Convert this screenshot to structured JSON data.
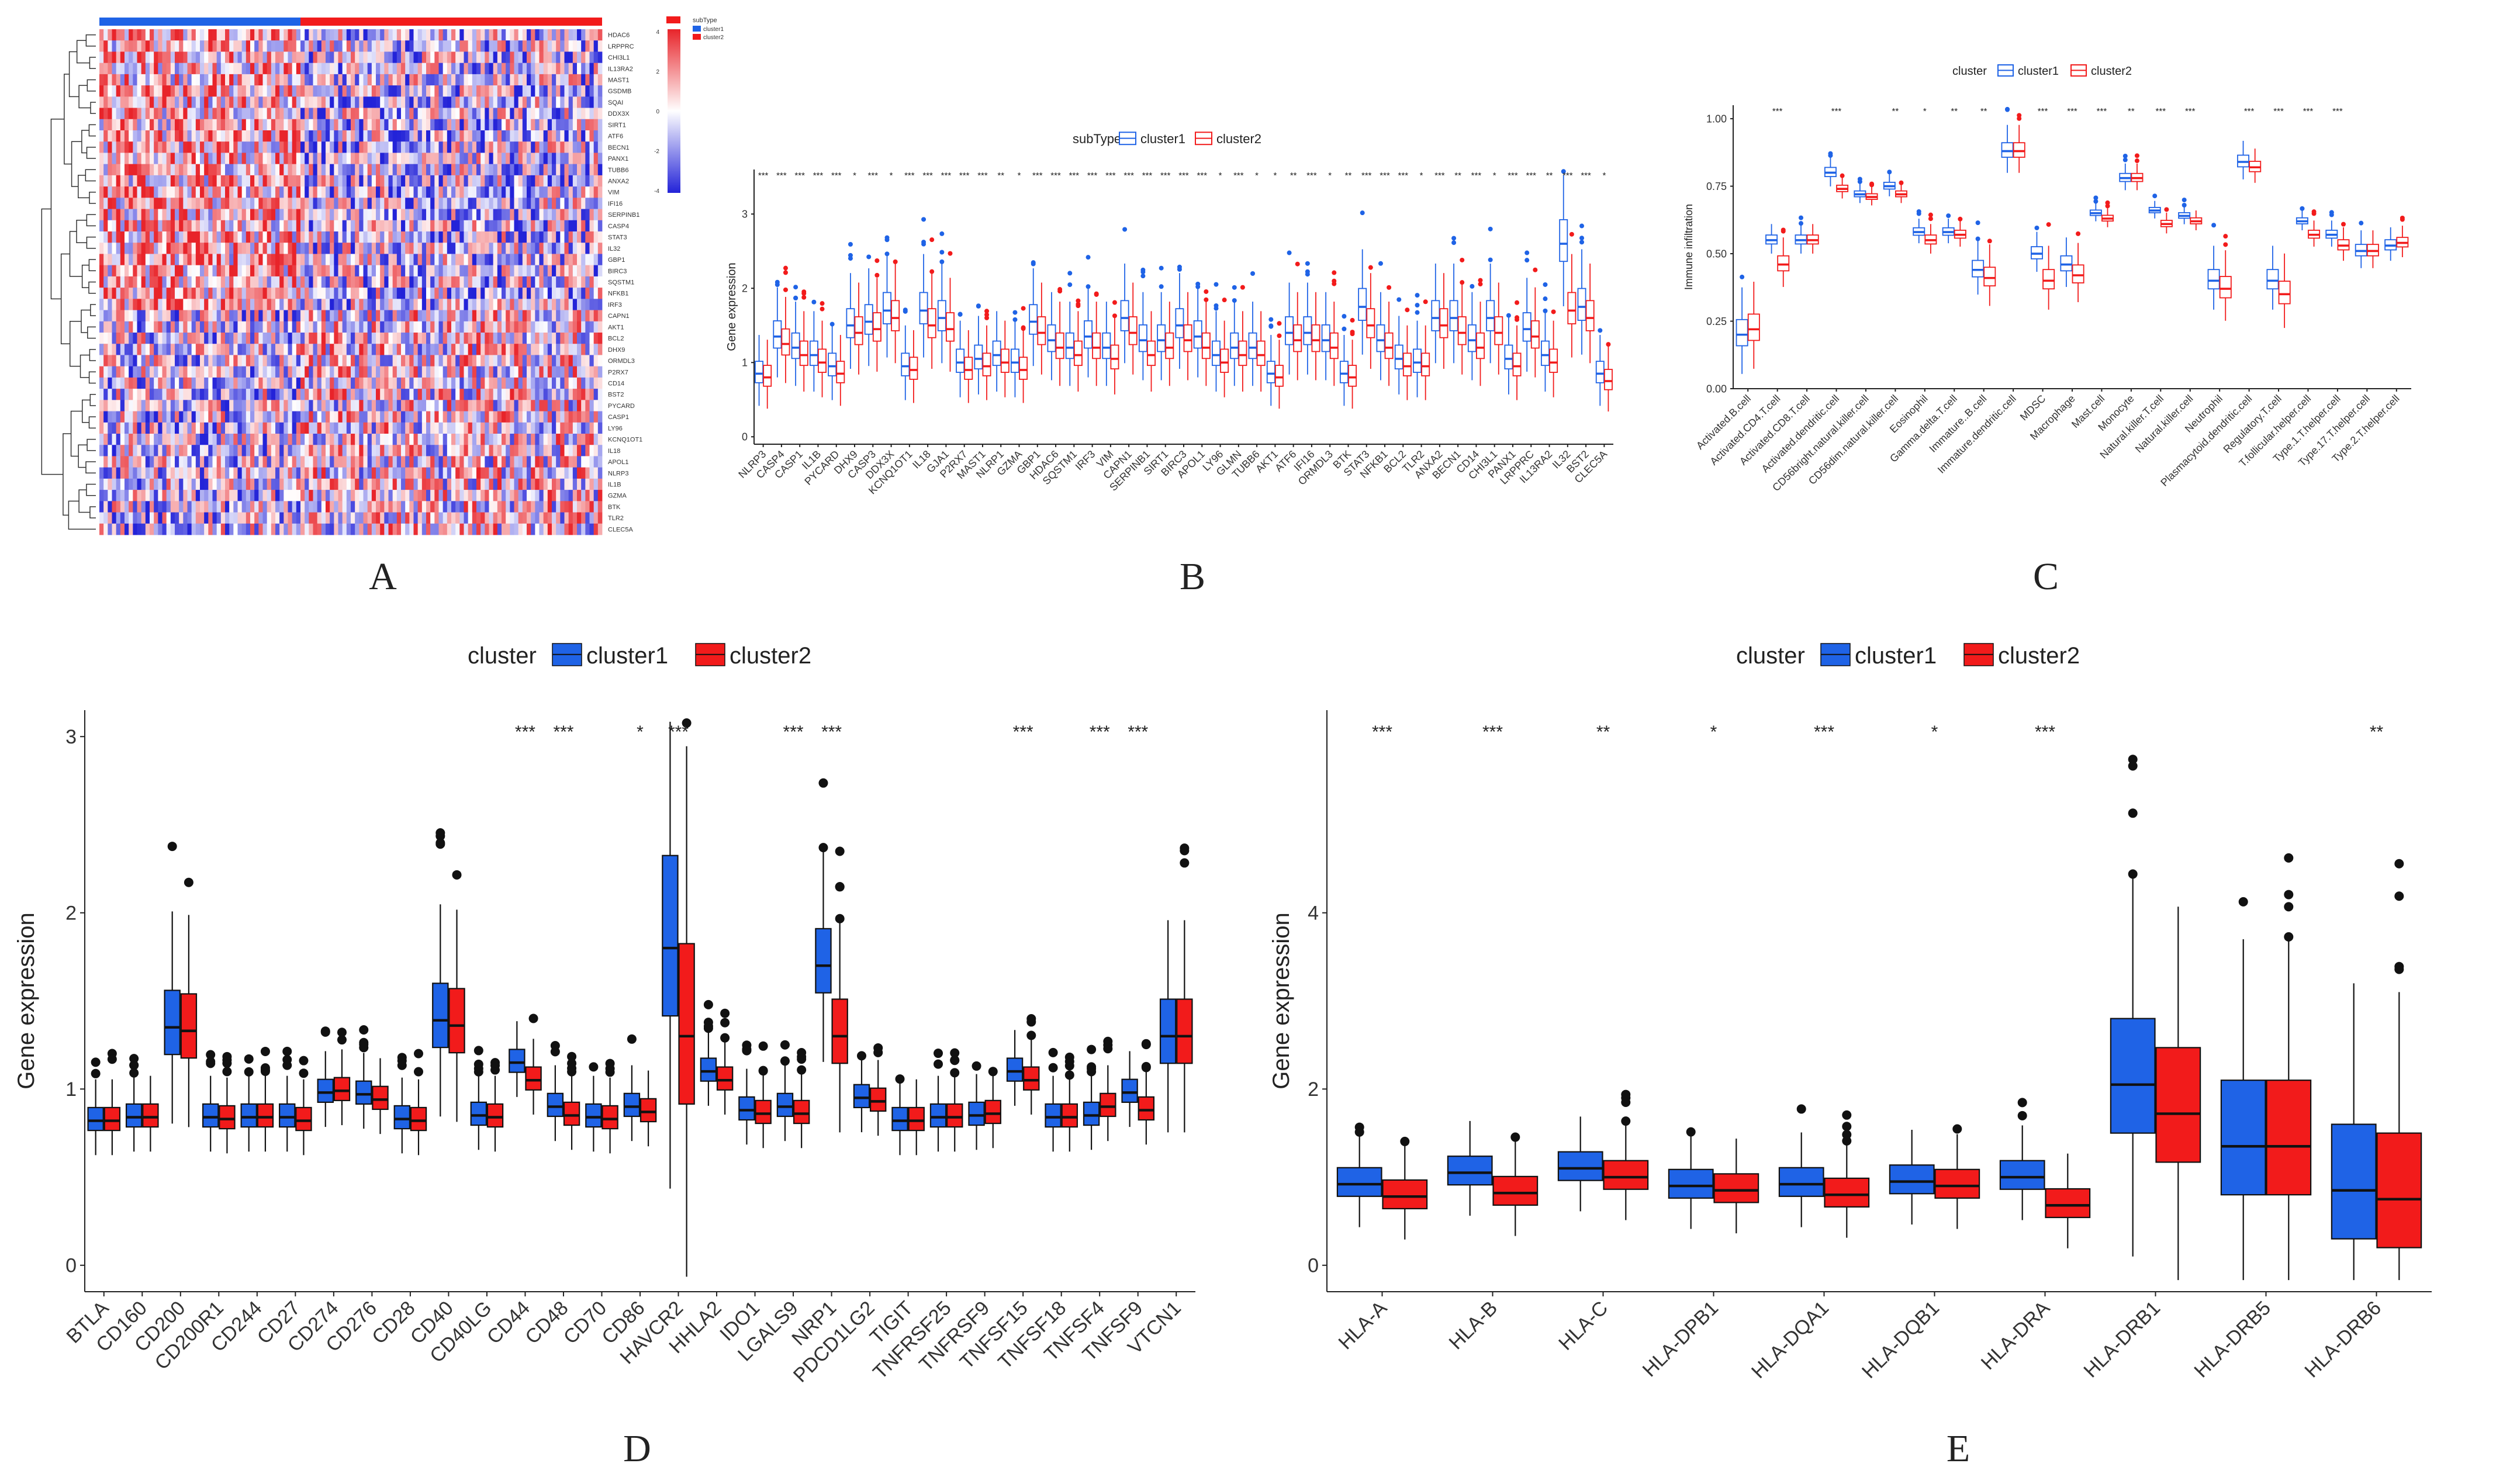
{
  "colors": {
    "cluster1": "#1f63e6",
    "cluster2": "#f21b1b",
    "heat_low": "#2323d8",
    "heat_mid": "#ffffff",
    "heat_high": "#e8242a",
    "axis": "#222222"
  },
  "chart_data": [
    {
      "panel": "A",
      "type": "heatmap",
      "panel_label": "A",
      "legend_title": "subType",
      "legend_items": [
        "cluster1",
        "cluster2"
      ],
      "scale_ticks": [
        "4",
        "2",
        "0",
        "-2",
        "-4"
      ],
      "annotation_split_fraction": 0.4,
      "genes": [
        "HDAC6",
        "LRPPRC",
        "CHI3L1",
        "IL13RA2",
        "MAST1",
        "GSDMB",
        "SQAI",
        "DDX3X",
        "SIRT1",
        "ATF6",
        "BECN1",
        "PANX1",
        "TUBB6",
        "ANXA2",
        "VIM",
        "IFI16",
        "SERPINB1",
        "CASP4",
        "STAT3",
        "IL32",
        "GBP1",
        "BIRC3",
        "SQSTM1",
        "NFKB1",
        "IRF3",
        "CAPN1",
        "AKT1",
        "BCL2",
        "DHX9",
        "ORMDL3",
        "P2RX7",
        "CD14",
        "BST2",
        "PYCARD",
        "CASP1",
        "LY96",
        "KCNQ1OT1",
        "IL18",
        "APOL1",
        "NLRP3",
        "IL1B",
        "GZMA",
        "BTK",
        "TLR2",
        "CLEC5A"
      ]
    },
    {
      "panel": "B",
      "type": "box",
      "panel_label": "B",
      "legend_title": "subType",
      "series_names": [
        "cluster1",
        "cluster2"
      ],
      "ylabel": "Gene expression",
      "ylim": [
        -0.1,
        3.6
      ],
      "yticks": [
        0,
        1,
        2,
        3
      ],
      "categories": [
        "NLRP3",
        "CASP4",
        "CASP1",
        "IL1B",
        "PYCARD",
        "DHX9",
        "CASP3",
        "DDX3X",
        "KCNQ1OT1",
        "IL18",
        "GJA1",
        "P2RX7",
        "MAST1",
        "NLRP1",
        "GZMA",
        "GBP1",
        "HDAC6",
        "SQSTM1",
        "IRF3",
        "VIM",
        "CAPN1",
        "SERPINB1",
        "SIRT1",
        "BIRC3",
        "APOL1",
        "LY96",
        "GLMN",
        "TUBB6",
        "AKT1",
        "ATF6",
        "IFI16",
        "ORMDL3",
        "BTK",
        "STAT3",
        "NFKB1",
        "BCL2",
        "TLR2",
        "ANXA2",
        "BECN1",
        "CD14",
        "CHI3L1",
        "PANX1",
        "LRPPRC",
        "IL13RA2",
        "IL32",
        "BST2",
        "CLEC5A"
      ],
      "medians_c1": [
        0.85,
        1.35,
        1.2,
        1.1,
        0.95,
        1.5,
        1.55,
        1.7,
        0.95,
        1.7,
        1.6,
        1.0,
        1.05,
        1.1,
        1.0,
        1.55,
        1.3,
        1.2,
        1.35,
        1.2,
        1.6,
        1.3,
        1.3,
        1.5,
        1.35,
        1.1,
        1.2,
        1.2,
        0.85,
        1.4,
        1.4,
        1.3,
        0.85,
        1.75,
        1.3,
        1.05,
        1.0,
        1.6,
        1.6,
        1.3,
        1.6,
        1.05,
        1.45,
        1.1,
        2.6,
        1.75,
        0.85
      ],
      "medians_c2": [
        0.8,
        1.25,
        1.1,
        1.0,
        0.85,
        1.4,
        1.45,
        1.6,
        0.9,
        1.5,
        1.45,
        0.9,
        0.95,
        1.0,
        0.9,
        1.4,
        1.2,
        1.1,
        1.2,
        1.05,
        1.4,
        1.1,
        1.2,
        1.3,
        1.2,
        1.0,
        1.1,
        1.1,
        0.8,
        1.3,
        1.3,
        1.2,
        0.8,
        1.5,
        1.2,
        0.95,
        0.95,
        1.5,
        1.4,
        1.2,
        1.4,
        0.95,
        1.35,
        1.0,
        1.7,
        1.6,
        0.75
      ],
      "significance": [
        "***",
        "***",
        "***",
        "***",
        "***",
        "*",
        "***",
        "*",
        "***",
        "***",
        "***",
        "***",
        "***",
        "**",
        "*",
        "***",
        "***",
        "***",
        "***",
        "***",
        "***",
        "***",
        "***",
        "***",
        "***",
        "*",
        "***",
        "*",
        "*",
        "**",
        "***",
        "*",
        "**",
        "***",
        "***",
        "***",
        "*",
        "***",
        "**",
        "***",
        "*",
        "***",
        "***",
        "**",
        "***",
        "***",
        "*"
      ]
    },
    {
      "panel": "C",
      "type": "box",
      "panel_label": "C",
      "legend_title": "cluster",
      "series_names": [
        "cluster1",
        "cluster2"
      ],
      "ylabel": "Immune infiltration",
      "ylim": [
        0,
        1.05
      ],
      "yticks": [
        "0.00",
        "0.25",
        "0.50",
        "0.75",
        "1.00"
      ],
      "categories": [
        "Activated.B.cell",
        "Activated.CD4.T.cell",
        "Activated.CD8.T.cell",
        "Activated.dendritic.cell",
        "CD56bright.natural.killer.cell",
        "CD56dim.natural.killer.cell",
        "Eosinophil",
        "Gamma.delta.T.cell",
        "Immature..B.cell",
        "Immature.dendritic.cell",
        "MDSC",
        "Macrophage",
        "Mast.cell",
        "Monocyte",
        "Natural.killer.T.cell",
        "Natural.killer.cell",
        "Neutrophil",
        "Plasmacytoid.dendritic.cell",
        "Regulatory.T.cell",
        "T.follicular.helper.cell",
        "Type.1.T.helper.cell",
        "Type.17.T.helper.cell",
        "Type.2.T.helper.cell"
      ],
      "medians_c1": [
        0.2,
        0.55,
        0.55,
        0.8,
        0.72,
        0.75,
        0.58,
        0.58,
        0.44,
        0.88,
        0.5,
        0.46,
        0.65,
        0.78,
        0.66,
        0.64,
        0.4,
        0.84,
        0.4,
        0.62,
        0.57,
        0.51,
        0.53
      ],
      "medians_c2": [
        0.22,
        0.46,
        0.55,
        0.74,
        0.71,
        0.72,
        0.55,
        0.57,
        0.41,
        0.88,
        0.4,
        0.42,
        0.63,
        0.78,
        0.61,
        0.62,
        0.37,
        0.82,
        0.35,
        0.57,
        0.53,
        0.51,
        0.54
      ],
      "significance": [
        "",
        "***",
        "",
        "***",
        "",
        "**",
        "*",
        "**",
        "**",
        "",
        "***",
        "***",
        "***",
        "**",
        "***",
        "***",
        "",
        "***",
        "***",
        "***",
        "***",
        "",
        ""
      ]
    },
    {
      "panel": "D",
      "type": "box",
      "panel_label": "D",
      "legend_title": "cluster",
      "series_names": [
        "cluster1",
        "cluster2"
      ],
      "ylabel": "Gene expression",
      "ylim": [
        -0.15,
        3.15
      ],
      "yticks": [
        0,
        1,
        2,
        3
      ],
      "categories": [
        "BTLA",
        "CD160",
        "CD200",
        "CD200R1",
        "CD244",
        "CD27",
        "CD274",
        "CD276",
        "CD28",
        "CD40",
        "CD40LG",
        "CD44",
        "CD48",
        "CD70",
        "CD86",
        "HAVCR2",
        "HHLA2",
        "IDO1",
        "LGALS9",
        "NRP1",
        "PDCD1LG2",
        "TIGIT",
        "TNFRSF25",
        "TNFRSF9",
        "TNFSF15",
        "TNFSF18",
        "TNFSF4",
        "TNFSF9",
        "VTCN1"
      ],
      "medians_c1": [
        0.82,
        0.84,
        1.35,
        0.84,
        0.84,
        0.84,
        0.98,
        0.97,
        0.83,
        1.39,
        0.85,
        1.15,
        0.9,
        0.84,
        0.9,
        1.8,
        1.1,
        0.88,
        0.9,
        1.7,
        0.95,
        0.82,
        0.84,
        0.85,
        1.1,
        0.84,
        0.85,
        0.98,
        1.3
      ],
      "medians_c2": [
        0.82,
        0.84,
        1.33,
        0.83,
        0.84,
        0.82,
        0.99,
        0.94,
        0.82,
        1.36,
        0.84,
        1.05,
        0.85,
        0.83,
        0.87,
        1.3,
        1.05,
        0.86,
        0.86,
        1.3,
        0.93,
        0.82,
        0.84,
        0.86,
        1.05,
        0.84,
        0.9,
        0.88,
        1.3
      ],
      "significance": [
        "",
        "",
        "",
        "",
        "",
        "",
        "",
        "",
        "",
        "",
        "",
        "***",
        "***",
        "",
        "*",
        "***",
        "",
        "",
        "***",
        "***",
        "",
        "",
        "",
        "",
        "***",
        "",
        "***",
        "***",
        ""
      ]
    },
    {
      "panel": "E",
      "type": "box",
      "panel_label": "E",
      "legend_title": "cluster",
      "series_names": [
        "cluster1",
        "cluster2"
      ],
      "ylabel": "Gene expression",
      "ylim": [
        -0.3,
        6.3
      ],
      "yticks": [
        0,
        2,
        4
      ],
      "categories": [
        "HLA-A",
        "HLA-B",
        "HLA-C",
        "HLA-DPB1",
        "HLA-DQA1",
        "HLA-DQB1",
        "HLA-DRA",
        "HLA-DRB1",
        "HLA-DRB5",
        "HLA-DRB6"
      ],
      "medians_c1": [
        0.92,
        1.05,
        1.1,
        0.9,
        0.92,
        0.95,
        1.0,
        2.05,
        1.35,
        0.85
      ],
      "medians_c2": [
        0.78,
        0.82,
        1.0,
        0.85,
        0.8,
        0.9,
        0.68,
        1.72,
        1.35,
        0.75
      ],
      "significance": [
        "***",
        "***",
        "**",
        "*",
        "***",
        "*",
        "***",
        "",
        "",
        "**"
      ]
    }
  ]
}
